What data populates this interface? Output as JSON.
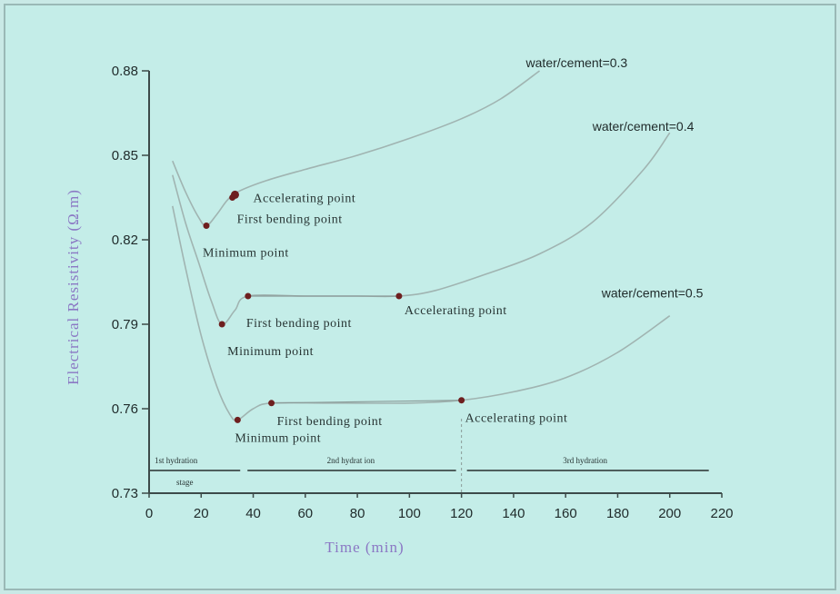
{
  "chart_data": {
    "type": "line",
    "title": "",
    "xlabel": "Time (min)",
    "ylabel": "Electrical Resistivity (Ω.m)",
    "xlim": [
      0,
      220
    ],
    "ylim": [
      0.73,
      0.88
    ],
    "x_ticks": [
      "0",
      "20",
      "40",
      "60",
      "80",
      "100",
      "120",
      "140",
      "160",
      "180",
      "200",
      "220"
    ],
    "y_ticks": [
      "0.73",
      "0.76",
      "0.79",
      "0.82",
      "0.85",
      "0.88"
    ],
    "grid": false,
    "colors": {
      "curve": "#a0b4b1",
      "marker": "#6e1f1f",
      "axis": "#3c4a49",
      "axis_title": "#8b78c4"
    },
    "series": [
      {
        "label": "water/cement=0.3",
        "x": [
          9,
          14,
          19,
          22,
          26,
          30,
          34,
          45,
          60,
          80,
          100,
          120,
          135,
          150
        ],
        "y": [
          0.848,
          0.837,
          0.828,
          0.825,
          0.829,
          0.834,
          0.837,
          0.841,
          0.845,
          0.85,
          0.856,
          0.863,
          0.87,
          0.88
        ]
      },
      {
        "label": "water/cement=0.4",
        "x": [
          9,
          14,
          19,
          24,
          28,
          33,
          38,
          60,
          80,
          96,
          110,
          130,
          150,
          170,
          190,
          200
        ],
        "y": [
          0.843,
          0.826,
          0.812,
          0.798,
          0.79,
          0.795,
          0.8,
          0.8,
          0.8,
          0.8,
          0.802,
          0.808,
          0.815,
          0.826,
          0.845,
          0.858
        ]
      },
      {
        "label": "water/cement=0.5",
        "x": [
          9,
          14,
          20,
          26,
          31,
          34,
          40,
          47,
          70,
          100,
          120,
          140,
          160,
          180,
          200
        ],
        "y": [
          0.832,
          0.81,
          0.786,
          0.768,
          0.758,
          0.756,
          0.76,
          0.762,
          0.762,
          0.762,
          0.763,
          0.766,
          0.771,
          0.78,
          0.793
        ]
      }
    ],
    "markers": [
      {
        "series": 0,
        "x": 22,
        "y": 0.825,
        "label": "Minimum point"
      },
      {
        "series": 0,
        "x": 32,
        "y": 0.835,
        "label": "First bending point"
      },
      {
        "series": 0,
        "x": 33,
        "y": 0.836,
        "label": "Accelerating point"
      },
      {
        "series": 1,
        "x": 28,
        "y": 0.79,
        "label": "Minimum point"
      },
      {
        "series": 1,
        "x": 38,
        "y": 0.8,
        "label": "First bending point"
      },
      {
        "series": 1,
        "x": 96,
        "y": 0.8,
        "label": "Accelerating point"
      },
      {
        "series": 2,
        "x": 34,
        "y": 0.756,
        "label": "Minimum point"
      },
      {
        "series": 2,
        "x": 47,
        "y": 0.762,
        "label": "First bending point"
      },
      {
        "series": 2,
        "x": 120,
        "y": 0.763,
        "label": "Accelerating point"
      }
    ],
    "stages": [
      {
        "label": "1st hydration",
        "label2": "stage"
      },
      {
        "label": "2nd hydrat ion"
      },
      {
        "label": "3rd hydration"
      }
    ]
  }
}
